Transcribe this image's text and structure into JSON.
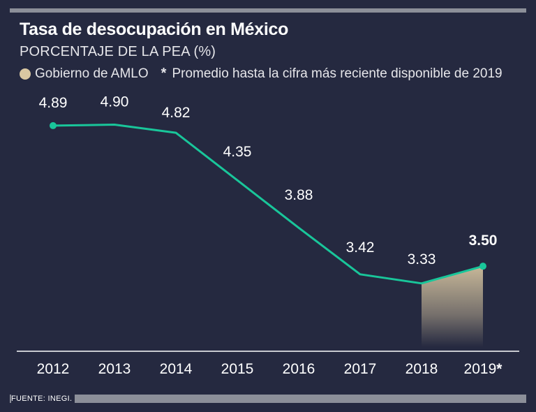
{
  "header": {
    "title": "Tasa de desocupación en México",
    "subtitle": "PORCENTAJE DE LA PEA (%)"
  },
  "legend": {
    "amlo_label": "Gobierno de AMLO",
    "note_star": "*",
    "note_text": "Promedio hasta la cifra más reciente disponible de 2019"
  },
  "footer": {
    "source": "FUENTE: INEGI."
  },
  "colors": {
    "background": "#252940",
    "line": "#19c69a",
    "amlo_fill": "#d9c7a2",
    "axis": "#ffffff"
  },
  "chart_data": {
    "type": "line",
    "title": "Tasa de desocupación en México",
    "ylabel": "PORCENTAJE DE LA PEA (%)",
    "xlabel": "",
    "categories": [
      "2012",
      "2013",
      "2014",
      "2015",
      "2016",
      "2017",
      "2018",
      "2019*"
    ],
    "value_labels": [
      "4.89",
      "4.90",
      "4.82",
      "4.35",
      "3.88",
      "3.42",
      "3.33",
      "3.50"
    ],
    "series": [
      {
        "name": "Tasa de desocupación",
        "values": [
          4.89,
          4.9,
          4.82,
          4.35,
          3.88,
          3.42,
          3.33,
          3.5
        ]
      }
    ],
    "highlight": {
      "label": "Gobierno de AMLO",
      "from": "2018",
      "to": "2019*"
    },
    "ylim": [
      2.7,
      5.0
    ],
    "grid": false
  }
}
